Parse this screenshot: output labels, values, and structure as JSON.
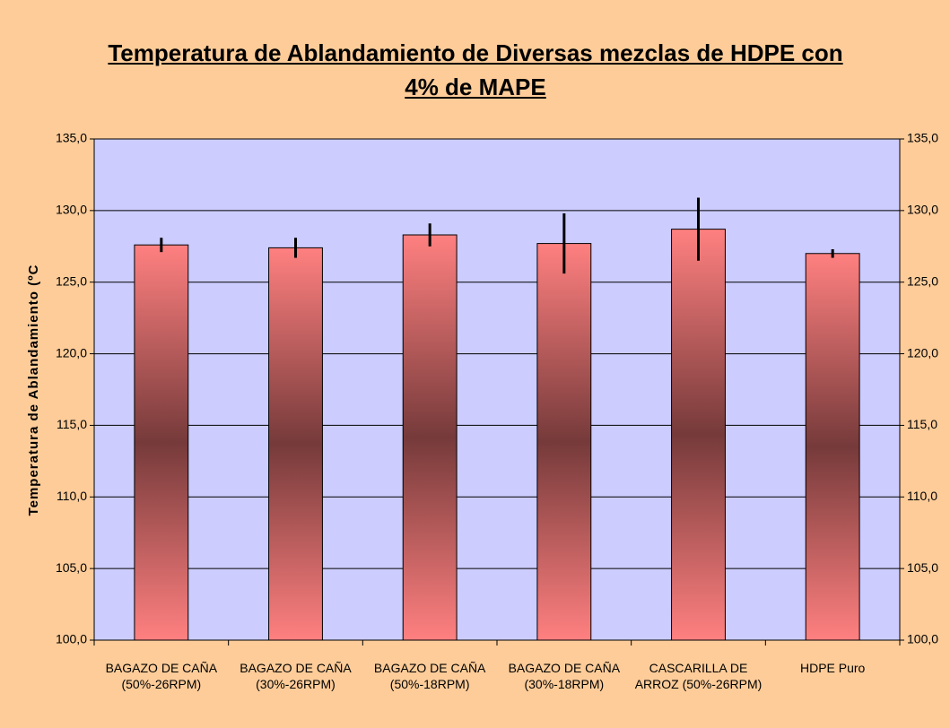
{
  "chart_data": {
    "type": "bar",
    "title": "Temperatura de Ablandamiento de Diversas mezclas de HDPE con 4% de MAPE",
    "y_label": "Temperatura de Ablandamiento (ºC",
    "categories": [
      "BAGAZO DE CAÑA (50%-26RPM)",
      "BAGAZO DE CAÑA (30%-26RPM)",
      "BAGAZO DE CAÑA (50%-18RPM)",
      "BAGAZO DE CAÑA (30%-18RPM)",
      "CASCARILLA DE ARROZ (50%-26RPM)",
      "HDPE Puro"
    ],
    "values": [
      127.6,
      127.4,
      128.3,
      127.7,
      128.7,
      127.0
    ],
    "errors": [
      0.5,
      0.7,
      0.8,
      2.1,
      2.2,
      0.3
    ],
    "color": "#ff8080",
    "ylim": [
      100,
      135
    ],
    "yticks": [
      {
        "value": 100,
        "label": "100,0"
      },
      {
        "value": 105,
        "label": "105,0"
      },
      {
        "value": 110,
        "label": "110,0"
      },
      {
        "value": 115,
        "label": "115,0"
      },
      {
        "value": 120,
        "label": "120,0"
      },
      {
        "value": 125,
        "label": "125,0"
      },
      {
        "value": 130,
        "label": "130,0"
      },
      {
        "value": 135,
        "label": "135,0"
      }
    ],
    "grid": true
  }
}
